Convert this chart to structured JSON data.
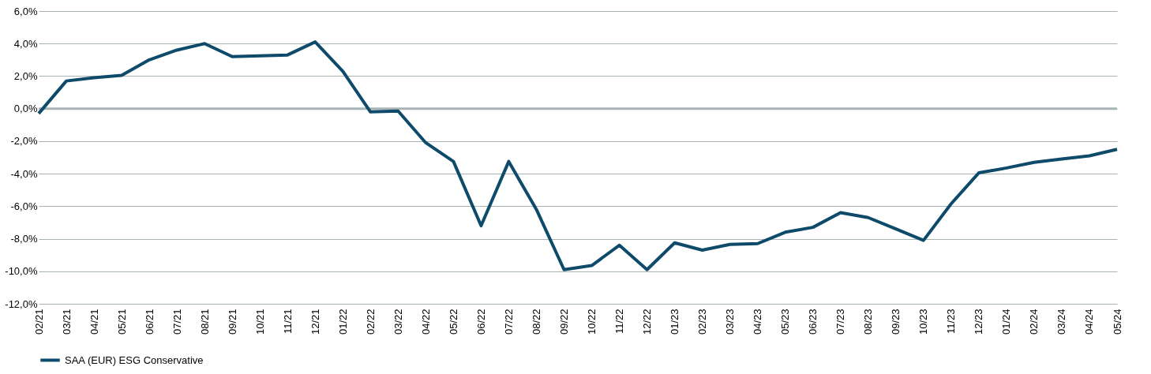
{
  "chart_data": {
    "type": "line",
    "categories": [
      "02/21",
      "03/21",
      "04/21",
      "05/21",
      "06/21",
      "07/21",
      "08/21",
      "09/21",
      "10/21",
      "11/21",
      "12/21",
      "01/22",
      "02/22",
      "03/22",
      "04/22",
      "05/22",
      "06/22",
      "07/22",
      "08/22",
      "09/22",
      "10/22",
      "11/22",
      "12/22",
      "01/23",
      "02/23",
      "03/23",
      "04/23",
      "05/23",
      "06/23",
      "07/23",
      "08/23",
      "09/23",
      "10/23",
      "11/23",
      "12/23",
      "01/24",
      "02/24",
      "03/24",
      "04/24",
      "05/24"
    ],
    "series": [
      {
        "name": "SAA (EUR) ESG Conservative",
        "color": "#0e4a6a",
        "values": [
          -0.3,
          1.7,
          1.9,
          2.05,
          3.0,
          3.6,
          4.0,
          3.2,
          3.25,
          3.3,
          4.1,
          2.3,
          -0.2,
          -0.15,
          -2.1,
          -3.25,
          -7.2,
          -3.25,
          -6.2,
          -9.9,
          -9.65,
          -8.4,
          -9.9,
          -8.25,
          -8.7,
          -8.35,
          -8.3,
          -7.6,
          -7.3,
          -6.4,
          -6.7,
          -7.4,
          -8.1,
          -5.85,
          -3.95,
          -3.65,
          -3.3,
          -3.1,
          -2.9,
          -2.5
        ]
      }
    ],
    "ylim": [
      -12,
      6
    ],
    "yticks": [
      {
        "value": -12,
        "label": "-12,0%"
      },
      {
        "value": -10,
        "label": "-10,0%"
      },
      {
        "value": -8,
        "label": "-8,0%"
      },
      {
        "value": -6,
        "label": "-6,0%"
      },
      {
        "value": -4,
        "label": "-4,0%"
      },
      {
        "value": -2,
        "label": "-2,0%"
      },
      {
        "value": 0,
        "label": "0,0%"
      },
      {
        "value": 2,
        "label": "2,0%"
      },
      {
        "value": 4,
        "label": "4,0%"
      },
      {
        "value": 6,
        "label": "6,0%"
      }
    ],
    "grid": "y",
    "legend": "bottom",
    "marker": "none",
    "line_style": "solid"
  }
}
